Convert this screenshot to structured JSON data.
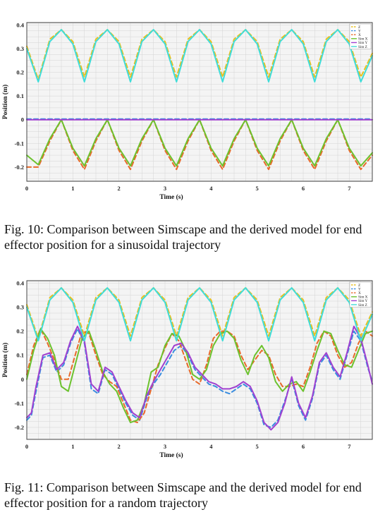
{
  "chart_data": [
    {
      "type": "line",
      "xlabel": "Time (s)",
      "ylabel": "Position (m)",
      "xlim": [
        0,
        7.5
      ],
      "ylim": [
        -0.26,
        0.41
      ],
      "xticks": [
        0,
        1,
        2,
        3,
        4,
        5,
        6,
        7
      ],
      "yticks": [
        0.4,
        0.3,
        0.2,
        0.1,
        0,
        -0.1,
        -0.2
      ],
      "ytick_labels": [
        "0.4",
        "0.3",
        "0.2",
        "0.1",
        "0",
        "-0.1",
        "-0.2"
      ],
      "grid": true,
      "legend_position": "top-right",
      "series": [
        {
          "name": "Z",
          "color": "#e8c020",
          "dashed": true,
          "x": [
            0,
            0.25,
            0.5,
            0.75,
            1.0,
            1.25,
            1.5,
            1.75,
            2.0,
            2.25,
            2.5,
            2.75,
            3.0,
            3.25,
            3.5,
            3.75,
            4.0,
            4.25,
            4.5,
            4.75,
            5.0,
            5.25,
            5.5,
            5.75,
            6.0,
            6.25,
            6.5,
            6.75,
            7.0,
            7.25,
            7.5
          ],
          "y": [
            0.31,
            0.17,
            0.34,
            0.38,
            0.33,
            0.18,
            0.34,
            0.38,
            0.33,
            0.18,
            0.34,
            0.38,
            0.33,
            0.18,
            0.34,
            0.38,
            0.33,
            0.18,
            0.34,
            0.38,
            0.33,
            0.18,
            0.34,
            0.38,
            0.33,
            0.18,
            0.34,
            0.38,
            0.33,
            0.18,
            0.28
          ]
        },
        {
          "name": "Y",
          "color": "#3a8de0",
          "dashed": true,
          "x": [
            0,
            7.5
          ],
          "y": [
            0.003,
            0.003
          ]
        },
        {
          "name": "X",
          "color": "#e86a2a",
          "dashed": true,
          "x": [
            0,
            0.25,
            0.5,
            0.75,
            1.0,
            1.25,
            1.5,
            1.75,
            2.0,
            2.25,
            2.5,
            2.75,
            3.0,
            3.25,
            3.5,
            3.75,
            4.0,
            4.25,
            4.5,
            4.75,
            5.0,
            5.25,
            5.5,
            5.75,
            6.0,
            6.25,
            6.5,
            6.75,
            7.0,
            7.25,
            7.5
          ],
          "y": [
            -0.2,
            -0.2,
            -0.09,
            0.0,
            -0.13,
            -0.21,
            -0.09,
            0.0,
            -0.13,
            -0.21,
            -0.09,
            0.0,
            -0.13,
            -0.21,
            -0.09,
            0.0,
            -0.13,
            -0.21,
            -0.09,
            0.0,
            -0.13,
            -0.21,
            -0.09,
            0.0,
            -0.13,
            -0.21,
            -0.09,
            0.0,
            -0.13,
            -0.21,
            -0.15
          ]
        },
        {
          "name": "Sim X",
          "color": "#6cc22e",
          "dashed": false,
          "x": [
            0,
            0.25,
            0.5,
            0.75,
            1.0,
            1.25,
            1.5,
            1.75,
            2.0,
            2.25,
            2.5,
            2.75,
            3.0,
            3.25,
            3.5,
            3.75,
            4.0,
            4.25,
            4.5,
            4.75,
            5.0,
            5.25,
            5.5,
            5.75,
            6.0,
            6.25,
            6.5,
            6.75,
            7.0,
            7.25,
            7.5
          ],
          "y": [
            -0.15,
            -0.19,
            -0.08,
            0.0,
            -0.12,
            -0.195,
            -0.08,
            0.0,
            -0.12,
            -0.195,
            -0.08,
            0.0,
            -0.12,
            -0.195,
            -0.08,
            0.0,
            -0.12,
            -0.195,
            -0.08,
            0.0,
            -0.12,
            -0.195,
            -0.08,
            0.0,
            -0.12,
            -0.195,
            -0.08,
            0.0,
            -0.12,
            -0.195,
            -0.14
          ]
        },
        {
          "name": "Sim Y",
          "color": "#a040d0",
          "dashed": false,
          "x": [
            0,
            7.5
          ],
          "y": [
            0.0,
            0.0
          ]
        },
        {
          "name": "Sim Z",
          "color": "#40dcd8",
          "dashed": false,
          "x": [
            0,
            0.25,
            0.5,
            0.75,
            1.0,
            1.25,
            1.5,
            1.75,
            2.0,
            2.25,
            2.5,
            2.75,
            3.0,
            3.25,
            3.5,
            3.75,
            4.0,
            4.25,
            4.5,
            4.75,
            5.0,
            5.25,
            5.5,
            5.75,
            6.0,
            6.25,
            6.5,
            6.75,
            7.0,
            7.25,
            7.5
          ],
          "y": [
            0.3,
            0.16,
            0.33,
            0.38,
            0.32,
            0.16,
            0.33,
            0.38,
            0.32,
            0.16,
            0.33,
            0.38,
            0.32,
            0.16,
            0.33,
            0.38,
            0.32,
            0.16,
            0.33,
            0.38,
            0.32,
            0.16,
            0.33,
            0.38,
            0.32,
            0.16,
            0.33,
            0.38,
            0.32,
            0.16,
            0.27
          ]
        }
      ]
    },
    {
      "type": "line",
      "xlabel": "Time (s)",
      "ylabel": "Position (m)",
      "xlim": [
        0,
        7.5
      ],
      "ylim": [
        -0.25,
        0.41
      ],
      "xticks": [
        0,
        1,
        2,
        3,
        4,
        5,
        6,
        7
      ],
      "yticks": [
        0.4,
        0.3,
        0.2,
        0.1,
        0,
        -0.1,
        -0.2
      ],
      "ytick_labels": [
        "0.4",
        "0.3",
        "0.2",
        "0.1",
        "0",
        "-0.1",
        "-0.2"
      ],
      "grid": true,
      "legend_position": "top-right",
      "series": [
        {
          "name": "Z",
          "color": "#e8c020",
          "dashed": true,
          "x": [
            0,
            0.25,
            0.5,
            0.75,
            1.0,
            1.25,
            1.5,
            1.75,
            2.0,
            2.25,
            2.5,
            2.75,
            3.0,
            3.25,
            3.5,
            3.75,
            4.0,
            4.25,
            4.5,
            4.75,
            5.0,
            5.25,
            5.5,
            5.75,
            6.0,
            6.25,
            6.5,
            6.75,
            7.0,
            7.25,
            7.5
          ],
          "y": [
            0.31,
            0.17,
            0.34,
            0.38,
            0.33,
            0.18,
            0.34,
            0.38,
            0.33,
            0.18,
            0.34,
            0.38,
            0.33,
            0.18,
            0.34,
            0.38,
            0.33,
            0.18,
            0.34,
            0.38,
            0.33,
            0.18,
            0.34,
            0.38,
            0.33,
            0.18,
            0.34,
            0.38,
            0.33,
            0.18,
            0.28
          ]
        },
        {
          "name": "Y",
          "color": "#3a8de0",
          "dashed": true,
          "x": [
            0,
            0.1,
            0.2,
            0.35,
            0.5,
            0.65,
            0.8,
            0.95,
            1.1,
            1.25,
            1.4,
            1.55,
            1.7,
            1.85,
            2.0,
            2.15,
            2.3,
            2.45,
            2.6,
            2.75,
            2.9,
            3.05,
            3.2,
            3.35,
            3.5,
            3.65,
            3.8,
            3.95,
            4.1,
            4.25,
            4.4,
            4.55,
            4.7,
            4.85,
            5.0,
            5.15,
            5.3,
            5.45,
            5.6,
            5.75,
            5.9,
            6.05,
            6.2,
            6.35,
            6.5,
            6.65,
            6.8,
            6.95,
            7.1,
            7.25,
            7.4,
            7.5
          ],
          "y": [
            -0.17,
            -0.15,
            -0.05,
            0.09,
            0.1,
            0.03,
            0.06,
            0.15,
            0.21,
            0.15,
            -0.04,
            -0.06,
            0.04,
            0.02,
            -0.04,
            -0.1,
            -0.15,
            -0.17,
            -0.08,
            -0.02,
            0.02,
            0.07,
            0.12,
            0.14,
            0.1,
            0.04,
            0.01,
            -0.02,
            -0.03,
            -0.05,
            -0.06,
            -0.04,
            -0.02,
            -0.04,
            -0.1,
            -0.19,
            -0.2,
            -0.17,
            -0.09,
            0.0,
            -0.11,
            -0.17,
            -0.08,
            0.06,
            0.1,
            0.04,
            0.0,
            0.1,
            0.2,
            0.16,
            0.05,
            -0.01
          ]
        },
        {
          "name": "X",
          "color": "#e86a2a",
          "dashed": true,
          "x": [
            0,
            0.15,
            0.3,
            0.45,
            0.6,
            0.75,
            0.9,
            1.05,
            1.2,
            1.35,
            1.5,
            1.65,
            1.8,
            1.95,
            2.1,
            2.25,
            2.4,
            2.55,
            2.7,
            2.85,
            3.0,
            3.15,
            3.3,
            3.45,
            3.6,
            3.75,
            3.9,
            4.05,
            4.2,
            4.35,
            4.5,
            4.65,
            4.8,
            4.95,
            5.1,
            5.25,
            5.4,
            5.55,
            5.7,
            5.85,
            6.0,
            6.15,
            6.3,
            6.45,
            6.6,
            6.75,
            6.9,
            7.05,
            7.2,
            7.35,
            7.5
          ],
          "y": [
            0.02,
            0.14,
            0.21,
            0.15,
            0.08,
            0.0,
            0.0,
            0.1,
            0.2,
            0.19,
            0.1,
            0.02,
            -0.01,
            -0.03,
            -0.1,
            -0.17,
            -0.18,
            -0.14,
            -0.04,
            0.06,
            0.13,
            0.19,
            0.16,
            0.08,
            0.0,
            -0.02,
            0.06,
            0.17,
            0.2,
            0.2,
            0.18,
            0.1,
            0.04,
            0.08,
            0.12,
            0.1,
            0.02,
            -0.03,
            -0.03,
            -0.02,
            -0.03,
            0.05,
            0.15,
            0.2,
            0.18,
            0.1,
            0.05,
            0.07,
            0.15,
            0.2,
            0.18
          ]
        },
        {
          "name": "Sim X",
          "color": "#6cc22e",
          "dashed": false,
          "x": [
            0,
            0.15,
            0.3,
            0.45,
            0.6,
            0.75,
            0.9,
            1.05,
            1.2,
            1.35,
            1.5,
            1.65,
            1.8,
            1.95,
            2.1,
            2.25,
            2.4,
            2.55,
            2.7,
            2.85,
            3.0,
            3.15,
            3.3,
            3.45,
            3.6,
            3.75,
            3.9,
            4.05,
            4.2,
            4.35,
            4.5,
            4.65,
            4.8,
            4.95,
            5.1,
            5.25,
            5.4,
            5.55,
            5.7,
            5.85,
            6.0,
            6.15,
            6.3,
            6.45,
            6.6,
            6.75,
            6.9,
            7.05,
            7.2,
            7.35,
            7.5
          ],
          "y": [
            0.0,
            0.12,
            0.21,
            0.17,
            0.1,
            -0.03,
            -0.05,
            0.06,
            0.17,
            0.2,
            0.12,
            0.03,
            -0.02,
            -0.05,
            -0.12,
            -0.18,
            -0.17,
            -0.1,
            0.03,
            0.05,
            0.14,
            0.19,
            0.18,
            0.12,
            0.02,
            0.0,
            0.04,
            0.14,
            0.19,
            0.2,
            0.17,
            0.08,
            0.02,
            0.1,
            0.14,
            0.09,
            -0.01,
            -0.05,
            -0.02,
            -0.01,
            -0.05,
            0.03,
            0.12,
            0.2,
            0.19,
            0.12,
            0.06,
            0.05,
            0.12,
            0.19,
            0.2
          ]
        },
        {
          "name": "Sim Y",
          "color": "#a040d0",
          "dashed": false,
          "x": [
            0,
            0.1,
            0.2,
            0.35,
            0.5,
            0.65,
            0.8,
            0.95,
            1.1,
            1.25,
            1.4,
            1.55,
            1.7,
            1.85,
            2.0,
            2.15,
            2.3,
            2.45,
            2.6,
            2.75,
            2.9,
            3.05,
            3.2,
            3.35,
            3.5,
            3.65,
            3.8,
            3.95,
            4.1,
            4.25,
            4.4,
            4.55,
            4.7,
            4.85,
            5.0,
            5.15,
            5.3,
            5.45,
            5.6,
            5.75,
            5.9,
            6.05,
            6.2,
            6.35,
            6.5,
            6.65,
            6.8,
            6.95,
            7.1,
            7.25,
            7.4,
            7.5
          ],
          "y": [
            -0.16,
            -0.14,
            -0.03,
            0.1,
            0.11,
            0.04,
            0.07,
            0.16,
            0.22,
            0.16,
            -0.02,
            -0.05,
            0.05,
            0.03,
            -0.03,
            -0.09,
            -0.14,
            -0.16,
            -0.07,
            -0.01,
            0.04,
            0.09,
            0.14,
            0.15,
            0.11,
            0.05,
            0.02,
            -0.01,
            -0.02,
            -0.04,
            -0.04,
            -0.03,
            -0.01,
            -0.03,
            -0.09,
            -0.18,
            -0.21,
            -0.18,
            -0.1,
            0.01,
            -0.1,
            -0.16,
            -0.07,
            0.07,
            0.11,
            0.05,
            0.01,
            0.11,
            0.22,
            0.17,
            0.06,
            -0.02
          ]
        },
        {
          "name": "Sim Z",
          "color": "#40dcd8",
          "dashed": false,
          "x": [
            0,
            0.25,
            0.5,
            0.75,
            1.0,
            1.25,
            1.5,
            1.75,
            2.0,
            2.25,
            2.5,
            2.75,
            3.0,
            3.25,
            3.5,
            3.75,
            4.0,
            4.25,
            4.5,
            4.75,
            5.0,
            5.25,
            5.5,
            5.75,
            6.0,
            6.25,
            6.5,
            6.75,
            7.0,
            7.25,
            7.5
          ],
          "y": [
            0.3,
            0.16,
            0.33,
            0.38,
            0.32,
            0.16,
            0.33,
            0.38,
            0.32,
            0.16,
            0.33,
            0.38,
            0.32,
            0.16,
            0.33,
            0.38,
            0.32,
            0.16,
            0.33,
            0.38,
            0.32,
            0.16,
            0.33,
            0.38,
            0.32,
            0.16,
            0.33,
            0.38,
            0.32,
            0.16,
            0.27
          ]
        }
      ]
    }
  ],
  "captions": {
    "fig10": "Fig. 10: Comparison between Simscape and the derived model for end effector position for a sinusoidal trajectory",
    "fig11": "Fig. 11: Comparison between Simscape and the derived model for end effector position for a random trajectory"
  }
}
